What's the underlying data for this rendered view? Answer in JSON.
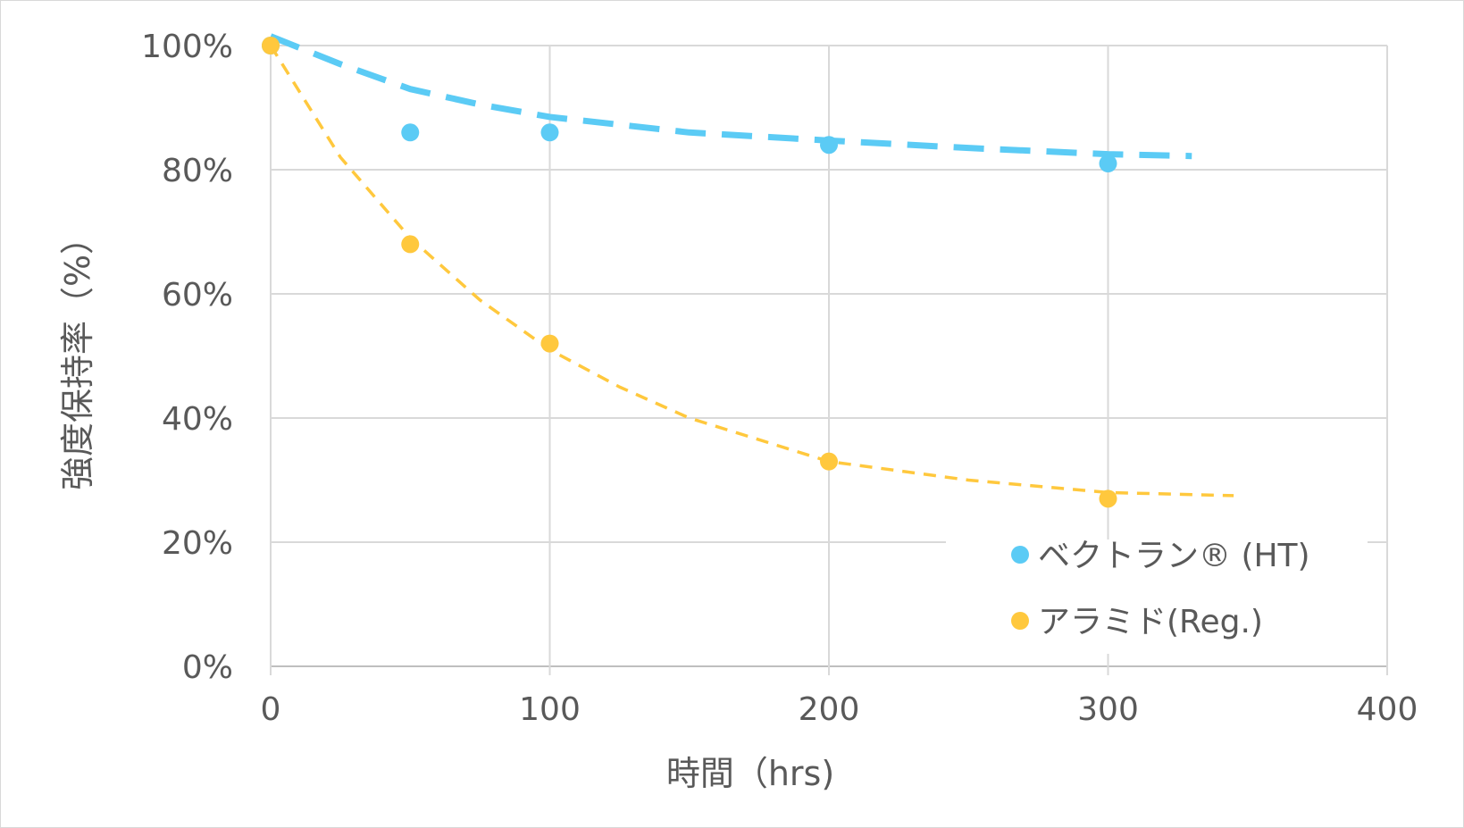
{
  "chart_data": {
    "type": "scatter",
    "title": "",
    "xlabel": "時間（hrs)",
    "ylabel": "強度保持率（%）",
    "xlim": [
      0,
      400
    ],
    "ylim": [
      0,
      100
    ],
    "xticks": [
      0,
      100,
      200,
      300,
      400
    ],
    "xtick_labels": [
      "0",
      "100",
      "200",
      "300",
      "400"
    ],
    "yticks": [
      0,
      20,
      40,
      60,
      80,
      100
    ],
    "ytick_labels": [
      "0%",
      "20%",
      "40%",
      "60%",
      "80%",
      "100%"
    ],
    "grid": true,
    "legend_position": "bottom-right",
    "series": [
      {
        "name": "ベクトラン® (HT)",
        "color": "#5BCBF5",
        "x": [
          0,
          50,
          100,
          200,
          300
        ],
        "y": [
          100,
          86,
          86,
          84,
          81
        ],
        "trendline": {
          "style": "dashed-thick",
          "x": [
            0,
            25,
            50,
            75,
            100,
            150,
            200,
            250,
            300,
            330
          ],
          "y": [
            101.5,
            97,
            93,
            90.5,
            88.5,
            86,
            84.7,
            83.5,
            82.5,
            82.2
          ]
        }
      },
      {
        "name": "アラミド(Reg.)",
        "color": "#FFC83D",
        "x": [
          0,
          50,
          100,
          200,
          300
        ],
        "y": [
          100,
          68,
          52,
          33,
          27
        ],
        "trendline": {
          "style": "dashed-thin",
          "x": [
            0,
            25,
            50,
            75,
            100,
            125,
            150,
            200,
            250,
            300,
            345
          ],
          "y": [
            100,
            82,
            69,
            59,
            51,
            45,
            40,
            33,
            30,
            28,
            27.5
          ]
        }
      }
    ]
  }
}
